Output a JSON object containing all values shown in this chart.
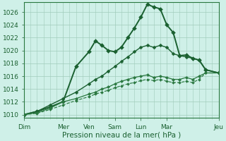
{
  "xlabel": "Pression niveau de la mer( hPa )",
  "bg_color": "#cff0e8",
  "grid_color": "#a0ccbb",
  "ylim": [
    1009.5,
    1027.5
  ],
  "yticks": [
    1010,
    1012,
    1014,
    1016,
    1018,
    1020,
    1022,
    1024,
    1026
  ],
  "day_labels": [
    "Dim",
    "Mer",
    "Ven",
    "Sam",
    "Lun",
    "Mar",
    "Jeu"
  ],
  "day_positions": [
    0,
    3,
    5,
    7,
    9,
    11,
    15
  ],
  "xlim": [
    0,
    15
  ],
  "series": [
    {
      "x": [
        0,
        1,
        2,
        3,
        4,
        5,
        5.5,
        6,
        6.5,
        7,
        7.5,
        8,
        8.5,
        9,
        9.5,
        10,
        10.5,
        11,
        11.5,
        12,
        12.5,
        13,
        13.5,
        14,
        15
      ],
      "y": [
        1010,
        1010.5,
        1011.2,
        1012,
        1017.5,
        1019.8,
        1021.5,
        1020.8,
        1020,
        1019.8,
        1020.5,
        1022,
        1023.5,
        1025.2,
        1027.2,
        1026.8,
        1026.5,
        1024,
        1022.8,
        1019.2,
        1019.3,
        1018.8,
        1018.5,
        1017,
        1016.5
      ],
      "color": "#1a6030",
      "lw": 1.4,
      "ls": "-",
      "ms": 3.0
    },
    {
      "x": [
        0,
        1,
        2,
        3,
        4,
        5,
        5.5,
        6,
        6.5,
        7,
        7.5,
        8,
        8.5,
        9,
        9.5,
        10,
        10.5,
        11,
        11.5,
        12,
        12.5,
        13,
        13.5,
        14,
        15
      ],
      "y": [
        1010,
        1010.5,
        1011.5,
        1012.5,
        1013.5,
        1014.8,
        1015.5,
        1016,
        1016.8,
        1017.5,
        1018.3,
        1019,
        1019.8,
        1020.5,
        1020.8,
        1020.5,
        1020.8,
        1020.5,
        1019.5,
        1019.2,
        1019,
        1018.8,
        1018.5,
        1017,
        1016.5
      ],
      "color": "#1a6030",
      "lw": 1.0,
      "ls": "-",
      "ms": 2.5
    },
    {
      "x": [
        0,
        1,
        2,
        3,
        4,
        5,
        5.5,
        6,
        6.5,
        7,
        7.5,
        8,
        8.5,
        9,
        9.5,
        10,
        10.5,
        11,
        11.5,
        12,
        12.5,
        13,
        13.5,
        14,
        15
      ],
      "y": [
        1010,
        1010.3,
        1011,
        1012,
        1012.5,
        1013.2,
        1013.5,
        1014,
        1014.3,
        1014.8,
        1015.2,
        1015.5,
        1015.8,
        1016,
        1016.2,
        1015.8,
        1016,
        1015.8,
        1015.5,
        1015.5,
        1015.8,
        1015.5,
        1016,
        1016.5,
        1016.5
      ],
      "color": "#2a7840",
      "lw": 0.9,
      "ls": "-",
      "ms": 2.2
    },
    {
      "x": [
        0,
        1,
        2,
        3,
        4,
        5,
        5.5,
        6,
        6.5,
        7,
        7.5,
        8,
        8.5,
        9,
        9.5,
        10,
        10.5,
        11,
        11.5,
        12,
        12.5,
        13,
        13.5,
        14,
        15
      ],
      "y": [
        1010,
        1010.2,
        1010.8,
        1011.5,
        1012.2,
        1012.8,
        1013.2,
        1013.5,
        1013.8,
        1014.2,
        1014.5,
        1014.8,
        1015,
        1015.3,
        1015.5,
        1015.3,
        1015.5,
        1015.2,
        1015,
        1015,
        1015.2,
        1015,
        1015.5,
        1016.5,
        1016.5
      ],
      "color": "#2a7840",
      "lw": 0.85,
      "ls": "--",
      "ms": 2.0
    }
  ],
  "ytick_fontsize": 6.5,
  "xtick_fontsize": 6.5,
  "xlabel_fontsize": 7.5,
  "dark_color": "#1a6030",
  "spine_color": "#2a7840"
}
